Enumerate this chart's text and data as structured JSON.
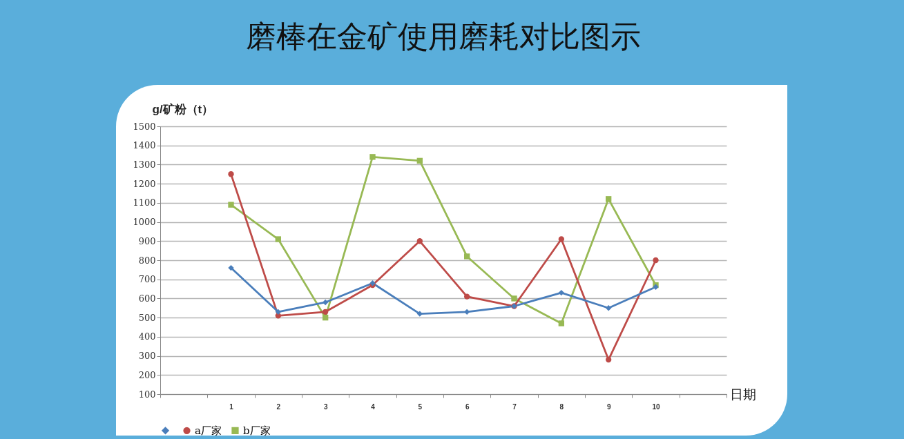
{
  "chart_data": {
    "type": "line",
    "title": "磨棒在金矿使用磨耗对比图示",
    "xlabel": "日期",
    "ylabel": "g/矿粉（t）",
    "categories": [
      null,
      "1",
      "2",
      "3",
      "4",
      "5",
      "6",
      "7",
      "8",
      "9",
      "10",
      null
    ],
    "series": [
      {
        "color": "#4a7ebb",
        "marker": "diamond",
        "values": [
          null,
          760,
          530,
          580,
          680,
          520,
          530,
          560,
          630,
          550,
          660,
          null
        ]
      },
      {
        "name": "a厂家",
        "color": "#be4b48",
        "marker": "circle",
        "values": [
          null,
          1250,
          510,
          530,
          670,
          900,
          610,
          560,
          910,
          280,
          800,
          null
        ]
      },
      {
        "name": "b厂家",
        "color": "#98b954",
        "marker": "square",
        "values": [
          null,
          1090,
          910,
          500,
          1340,
          1320,
          820,
          600,
          470,
          1120,
          670,
          null
        ]
      }
    ],
    "ylim": [
      100,
      1500
    ],
    "yticks": [
      100,
      200,
      300,
      400,
      500,
      600,
      700,
      800,
      900,
      1000,
      1100,
      1200,
      1300,
      1400,
      1500
    ],
    "grid": "y",
    "legend": "bottom",
    "line_style": "solid"
  }
}
